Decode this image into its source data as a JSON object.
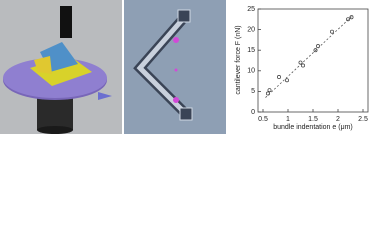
{
  "chart_data": {
    "type": "scatter",
    "xlabel": "bundle indentation e (μm)",
    "ylabel": "cantilever force F (nN)",
    "xlim": [
      0.4,
      2.6
    ],
    "xticks": [
      0.5,
      1,
      1.5,
      2,
      2.5
    ],
    "ylim": [
      0,
      25
    ],
    "yticks": [
      0,
      5,
      10,
      15,
      20,
      25
    ],
    "series": [
      {
        "color": "#333333",
        "marker": "circle",
        "x": [
          0.6,
          0.63,
          0.82,
          0.98,
          1.25,
          1.3,
          1.55,
          1.6,
          1.88,
          2.2,
          2.27
        ],
        "values": [
          4.5,
          5.3,
          8.5,
          7.7,
          12,
          11.3,
          15,
          16,
          19.5,
          22.5,
          23
        ]
      },
      {
        "color": "#555555",
        "style": "dashed",
        "x": [
          0.55,
          2.3
        ],
        "values": [
          3.5,
          23.5
        ]
      }
    ]
  }
}
